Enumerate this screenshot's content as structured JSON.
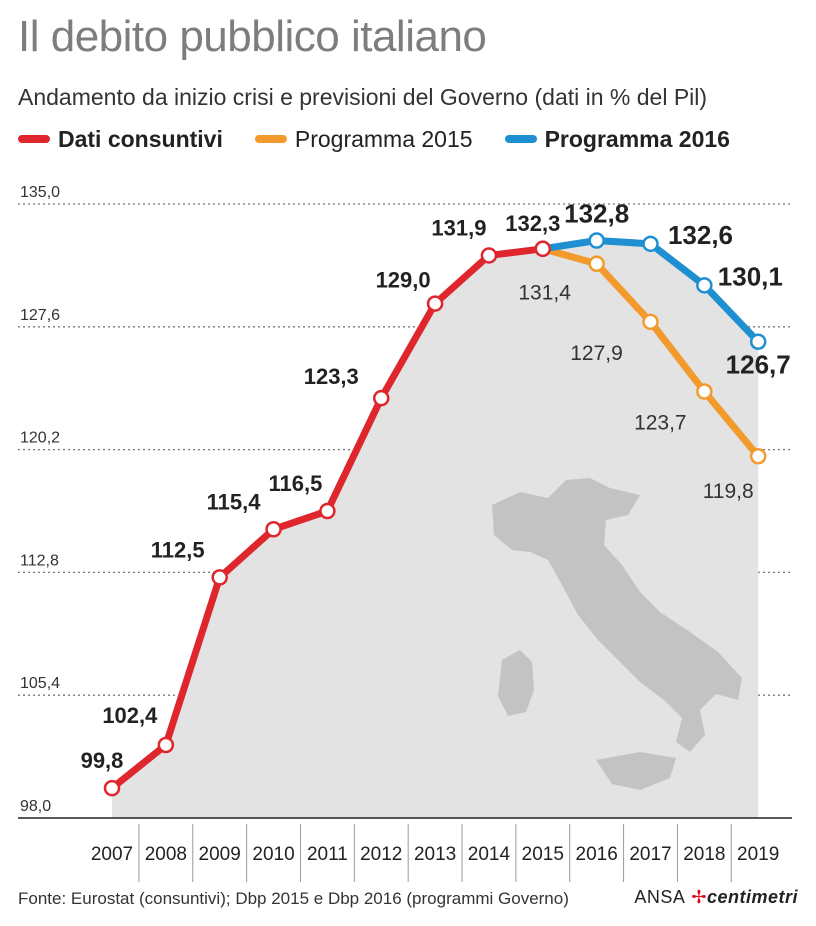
{
  "title": "Il debito pubblico italiano",
  "subtitle": "Andamento da inizio crisi e previsioni del Governo (dati in % del Pil)",
  "source": "Fonte: Eurostat (consuntivi); Dbp 2015 e Dbp 2016 (programmi Governo)",
  "brand": {
    "ansa": "ANSA",
    "centimetri": "centimetri"
  },
  "chart_data": {
    "type": "line",
    "title": "Il debito pubblico italiano",
    "subtitle": "Andamento da inizio crisi e previsioni del Governo (dati in % del Pil)",
    "xlabel": "",
    "ylabel": "",
    "x": [
      "2007",
      "2008",
      "2009",
      "2010",
      "2011",
      "2012",
      "2013",
      "2014",
      "2015",
      "2016",
      "2017",
      "2018",
      "2019"
    ],
    "ylim": [
      98.0,
      135.0
    ],
    "yticks": [
      "98,0",
      "105,4",
      "112,8",
      "120,2",
      "127,6",
      "135,0"
    ],
    "ytick_values": [
      98.0,
      105.4,
      112.8,
      120.2,
      127.6,
      135.0
    ],
    "grid": true,
    "legend_position": "top",
    "series": [
      {
        "name": "Dati consuntivi",
        "color": "#e0262d",
        "bold": true,
        "points": [
          {
            "x": "2007",
            "y": 99.8,
            "label": "99,8"
          },
          {
            "x": "2008",
            "y": 102.4,
            "label": "102,4"
          },
          {
            "x": "2009",
            "y": 112.5,
            "label": "112,5"
          },
          {
            "x": "2010",
            "y": 115.4,
            "label": "115,4"
          },
          {
            "x": "2011",
            "y": 116.5,
            "label": "116,5"
          },
          {
            "x": "2012",
            "y": 123.3,
            "label": "123,3"
          },
          {
            "x": "2013",
            "y": 129.0,
            "label": "129,0"
          },
          {
            "x": "2014",
            "y": 131.9,
            "label": "131,9"
          },
          {
            "x": "2015",
            "y": 132.3,
            "label": "132,3"
          }
        ]
      },
      {
        "name": "Programma 2015",
        "color": "#f39a2d",
        "bold": false,
        "points": [
          {
            "x": "2015",
            "y": 132.3,
            "label": ""
          },
          {
            "x": "2016",
            "y": 131.4,
            "label": "131,4"
          },
          {
            "x": "2017",
            "y": 127.9,
            "label": "127,9"
          },
          {
            "x": "2018",
            "y": 123.7,
            "label": "123,7"
          },
          {
            "x": "2019",
            "y": 119.8,
            "label": "119,8"
          }
        ]
      },
      {
        "name": "Programma 2016",
        "color": "#1e8fd0",
        "bold": true,
        "points": [
          {
            "x": "2015",
            "y": 132.3,
            "label": ""
          },
          {
            "x": "2016",
            "y": 132.8,
            "label": "132,8"
          },
          {
            "x": "2017",
            "y": 132.6,
            "label": "132,6"
          },
          {
            "x": "2018",
            "y": 130.1,
            "label": "130,1"
          },
          {
            "x": "2019",
            "y": 126.7,
            "label": "126,7"
          }
        ]
      }
    ]
  }
}
